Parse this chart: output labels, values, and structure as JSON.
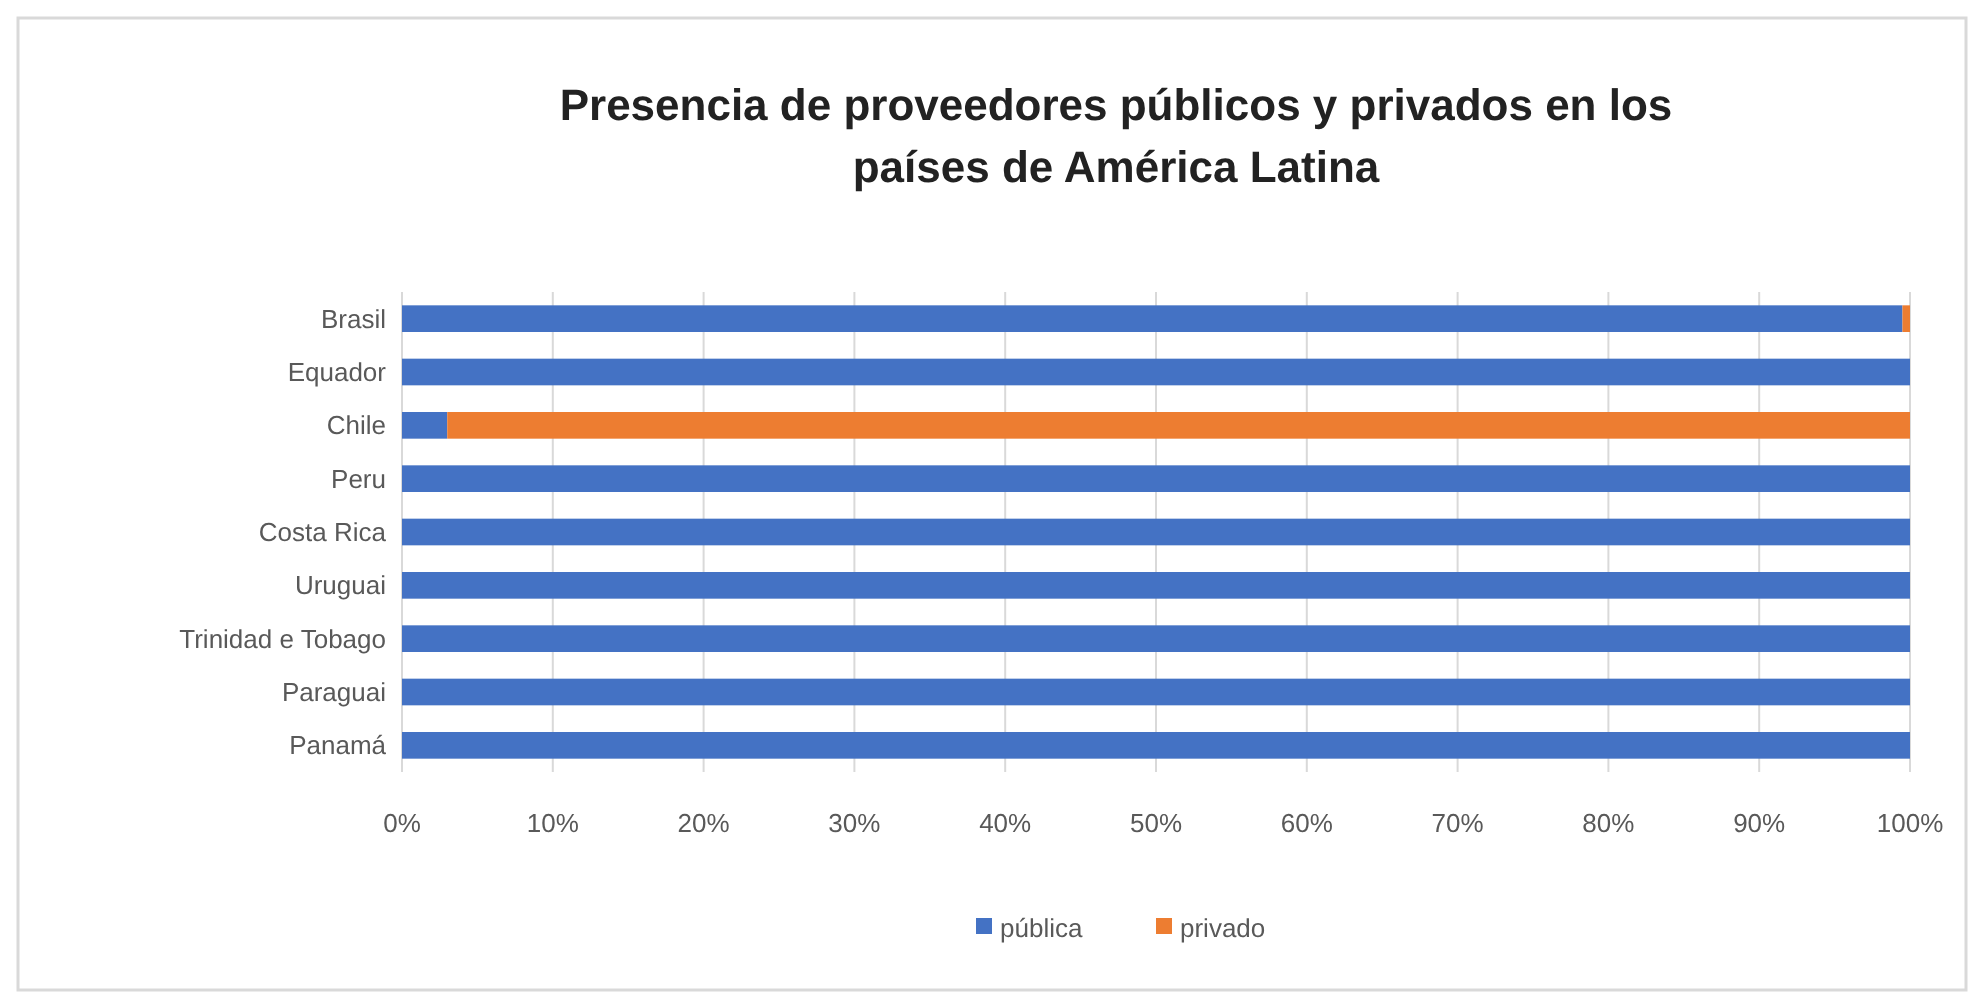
{
  "chart_data": {
    "type": "bar",
    "title": "Presencia de proveedores públicos y privados en los países de América Latina",
    "orientation": "horizontal",
    "stacked": true,
    "categories": [
      "Brasil",
      "Equador",
      "Chile",
      "Peru",
      "Costa Rica",
      "Uruguai",
      "Trinidad e Tobago",
      "Paraguai",
      "Panamá"
    ],
    "series": [
      {
        "name": "pública",
        "color": "#4472c4",
        "values": [
          99.5,
          100,
          3,
          100,
          100,
          100,
          100,
          100,
          100
        ]
      },
      {
        "name": "privado",
        "color": "#ed7d31",
        "values": [
          0.5,
          0,
          97,
          0,
          0,
          0,
          0,
          0,
          0
        ]
      }
    ],
    "xlim": [
      0,
      100
    ],
    "xticks": [
      {
        "value": 0,
        "label": "0%"
      },
      {
        "value": 10,
        "label": "10%"
      },
      {
        "value": 20,
        "label": "20%"
      },
      {
        "value": 30,
        "label": "30%"
      },
      {
        "value": 40,
        "label": "40%"
      },
      {
        "value": 50,
        "label": "50%"
      },
      {
        "value": 60,
        "label": "60%"
      },
      {
        "value": 70,
        "label": "70%"
      },
      {
        "value": 80,
        "label": "80%"
      },
      {
        "value": 90,
        "label": "90%"
      },
      {
        "value": 100,
        "label": "100%"
      }
    ],
    "grid": "x",
    "legend": "bottom"
  }
}
